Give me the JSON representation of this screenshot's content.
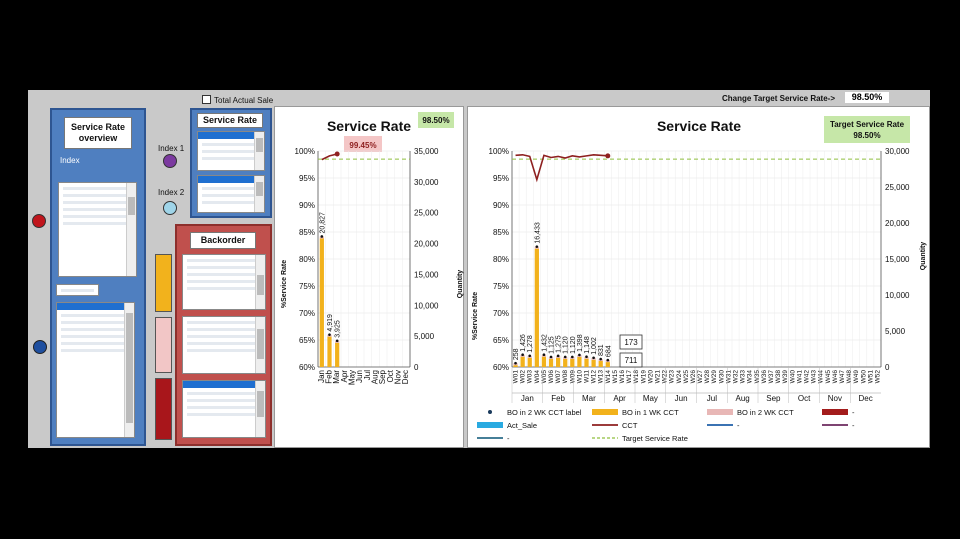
{
  "top_bar": {
    "total_actual_sale_label": "Total Actual Sale",
    "change_target_label": "Change Target Service Rate->",
    "target_value": "98.50%"
  },
  "overview": {
    "title": "Service Rate overview",
    "index_label": "Index"
  },
  "slicer_service_rate": {
    "title": "Service Rate",
    "index1": "Index 1",
    "index2": "Index 2"
  },
  "slicer_backorder": {
    "title": "Backorder"
  },
  "left_chart": {
    "badge": "98.50%",
    "current_rate": "99.45%"
  },
  "right_chart": {
    "target_badge_line1": "Target Service Rate",
    "target_badge_line2": "98.50%",
    "callout_top": "173",
    "callout_bottom": "711"
  },
  "legend": [
    {
      "label": "BO in 2 WK CCT label",
      "color": "#1a3a5c",
      "kind": "marker"
    },
    {
      "label": "BO in 1 WK CCT",
      "color": "#f2b21c",
      "kind": "bar"
    },
    {
      "label": "BO in 2 WK CCT",
      "color": "#e8b7b6",
      "kind": "bar"
    },
    {
      "label": "-",
      "color": "#a31c1c",
      "kind": "bar"
    },
    {
      "label": "Act_Sale",
      "color": "#29aae1",
      "kind": "bar"
    },
    {
      "label": "CCT",
      "color": "#8e1f1f",
      "kind": "line"
    },
    {
      "label": "-",
      "color": "#1f5fa8",
      "kind": "line"
    },
    {
      "label": "-",
      "color": "#6b2a5e",
      "kind": "line"
    },
    {
      "label": "-",
      "color": "#2b6d8a",
      "kind": "line"
    },
    {
      "label": "Target Service Rate",
      "color": "#8fbf3f",
      "kind": "dash"
    }
  ],
  "colors": {
    "bar": "#f2b21c",
    "pink": "#e8b7b6",
    "line": "#8e1f1f",
    "target": "#8fbf3f"
  },
  "chart_data": [
    {
      "type": "bar",
      "title": "Service Rate",
      "ylabel": "%Service Rate",
      "y2label": "Quantity",
      "categories": [
        "Jan",
        "Feb",
        "Mar",
        "Apr",
        "May",
        "Jun",
        "Jul",
        "Aug",
        "Sep",
        "Oct",
        "Nov",
        "Dec"
      ],
      "y_ticks": [
        "100%",
        "95%",
        "90%",
        "85%",
        "80%",
        "75%",
        "70%",
        "65%",
        "60%"
      ],
      "y2_ticks": [
        "35,000",
        "30,000",
        "25,000",
        "20,000",
        "15,000",
        "10,000",
        "5,000",
        "0"
      ],
      "ylim": [
        0.6,
        1.0
      ],
      "y2lim": [
        0,
        35000
      ],
      "series": [
        {
          "name": "BO in 1 WK CCT",
          "values": [
            20827,
            4919,
            3925,
            null,
            null,
            null,
            null,
            null,
            null,
            null,
            null,
            null
          ],
          "labels": [
            "20,827",
            "4,919",
            "3,925"
          ]
        },
        {
          "name": "CCT",
          "values": [
            0.984,
            0.991,
            0.9945,
            null,
            null,
            null,
            null,
            null,
            null,
            null,
            null,
            null
          ]
        }
      ],
      "target": 0.985
    },
    {
      "type": "bar",
      "title": "Service Rate",
      "ylabel": "%Service Rate",
      "y2label": "Quantity",
      "categories": [
        "W01",
        "W02",
        "W03",
        "W04",
        "W05",
        "W06",
        "W07",
        "W08",
        "W09",
        "W10",
        "W11",
        "W12",
        "W13",
        "W14",
        "W15",
        "W16",
        "W17",
        "W18",
        "W19",
        "W20",
        "W21",
        "W22",
        "W23",
        "W24",
        "W25",
        "W26",
        "W27",
        "W28",
        "W29",
        "W30",
        "W31",
        "W32",
        "W33",
        "W34",
        "W35",
        "W36",
        "W37",
        "W38",
        "W39",
        "W40",
        "W41",
        "W42",
        "W43",
        "W44",
        "W45",
        "W46",
        "W47",
        "W48",
        "W49",
        "W50",
        "W51",
        "W52"
      ],
      "months": [
        "Jan",
        "Feb",
        "Mar",
        "Apr",
        "May",
        "Jun",
        "Jul",
        "Aug",
        "Sep",
        "Oct",
        "Nov",
        "Dec"
      ],
      "y_ticks": [
        "100%",
        "95%",
        "90%",
        "85%",
        "80%",
        "75%",
        "70%",
        "65%",
        "60%"
      ],
      "y2_ticks": [
        "30,000",
        "25,000",
        "20,000",
        "15,000",
        "10,000",
        "5,000",
        "0"
      ],
      "ylim": [
        0.6,
        1.0
      ],
      "y2lim": [
        0,
        30000
      ],
      "series": [
        {
          "name": "BO in 1 WK CCT",
          "values": [
            258,
            1426,
            1278,
            16433,
            1432,
            1125,
            1275,
            1120,
            1120,
            1398,
            1148,
            1002,
            831,
            684,
            null,
            null,
            null,
            null,
            null,
            null,
            null,
            null,
            null,
            null,
            null,
            null,
            null,
            null,
            null,
            null,
            null,
            null,
            null,
            null,
            null,
            null,
            null,
            null,
            null,
            null,
            null,
            null,
            null,
            null,
            null,
            null,
            null,
            null,
            null,
            null,
            null,
            null
          ],
          "labels": [
            "258",
            "1,426",
            "1,278",
            "16,433",
            "1,432",
            "1,125",
            "1,275",
            "1,120",
            "1,120",
            "1,398",
            "1,148",
            "1,002",
            "831",
            "684"
          ]
        },
        {
          "name": "CCT",
          "values": [
            0.992,
            0.993,
            0.99,
            0.947,
            0.992,
            0.988,
            0.99,
            0.987,
            0.991,
            0.989,
            0.991,
            0.993,
            0.992,
            0.991,
            null,
            null,
            null,
            null,
            null,
            null,
            null,
            null,
            null,
            null,
            null,
            null,
            null,
            null,
            null,
            null,
            null,
            null,
            null,
            null,
            null,
            null,
            null,
            null,
            null,
            null,
            null,
            null,
            null,
            null,
            null,
            null,
            null,
            null,
            null,
            null,
            null,
            null
          ]
        }
      ],
      "target": 0.985
    }
  ]
}
